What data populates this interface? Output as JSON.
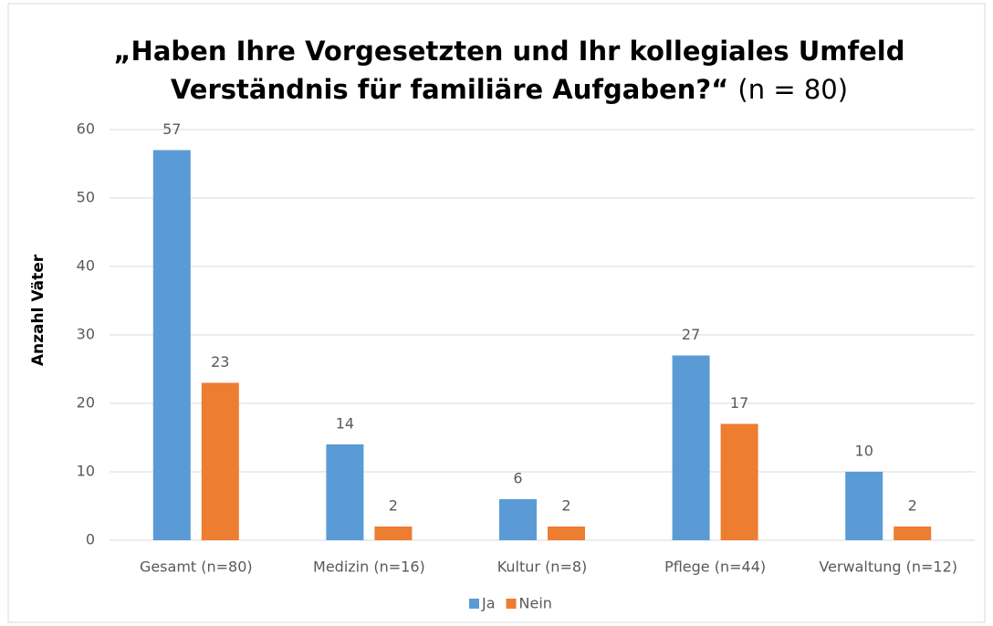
{
  "chart_data": {
    "type": "bar",
    "title_lines": [
      "„Haben Ihre Vorgesetzten und Ihr kollegiales Umfeld",
      "Verständnis für familiäre Aufgaben?“"
    ],
    "title_note": "(n = 80)",
    "ylabel": "Anzahl Väter",
    "categories": [
      "Gesamt (n=80)",
      "Medizin (n=16)",
      "Kultur (n=8)",
      "Pflege (n=44)",
      "Verwaltung (n=12)"
    ],
    "series": [
      {
        "name": "Ja",
        "color": "#5b9bd5",
        "values": [
          57,
          14,
          6,
          27,
          10
        ]
      },
      {
        "name": "Nein",
        "color": "#ed7d31",
        "values": [
          23,
          2,
          2,
          17,
          2
        ]
      }
    ],
    "ylim": [
      0,
      60
    ],
    "yticks": [
      0,
      10,
      20,
      30,
      40,
      50,
      60
    ],
    "grid": true,
    "legend": "bottom"
  }
}
